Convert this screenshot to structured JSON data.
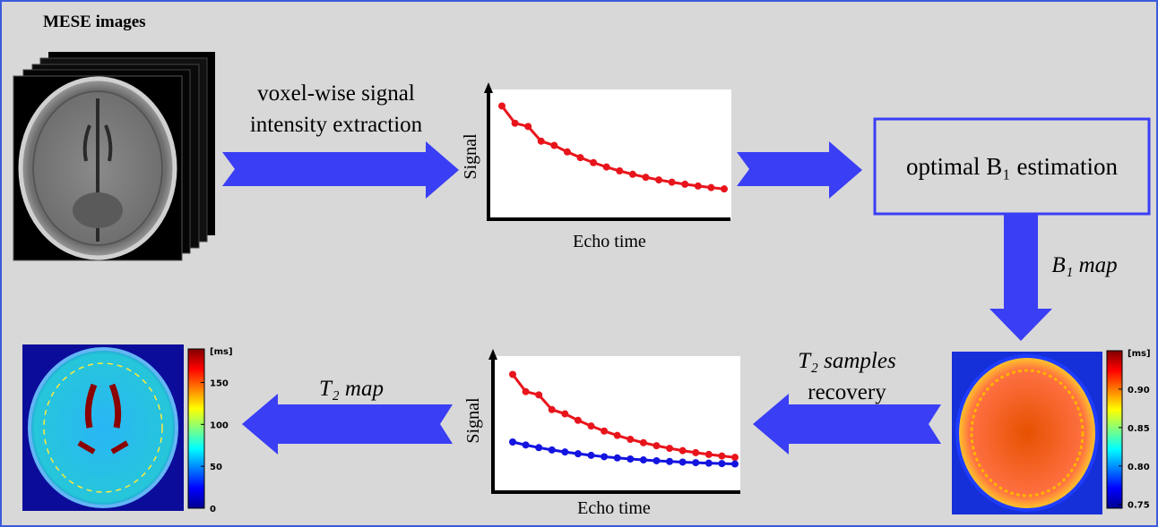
{
  "mese_label": "MESE images",
  "extraction_label": [
    "voxel-wise signal",
    "intensity extraction"
  ],
  "plot_top": {
    "y_label": "Signal",
    "x_label": "Echo time"
  },
  "b1_box": "optimal B₁ estimation",
  "b1_map_label": "B₁ map",
  "recovery_label": [
    "T₂ samples",
    "recovery"
  ],
  "plot_bottom": {
    "y_label": "Signal",
    "x_label": "Echo time"
  },
  "t2_map_label": "T₂ map",
  "b1_colorbar": {
    "unit": "[ms]",
    "lim": [
      0.745,
      0.95
    ],
    "ticks": [
      0.75,
      {
        "value": 0.8,
        "label": "0.80"
      },
      0.85,
      {
        "value": 0.9,
        "label": "0.90"
      }
    ]
  },
  "t2_colorbar": {
    "unit": "[ms]",
    "lim": [
      0,
      190
    ],
    "ticks": [
      0,
      50,
      100,
      150
    ]
  }
}
